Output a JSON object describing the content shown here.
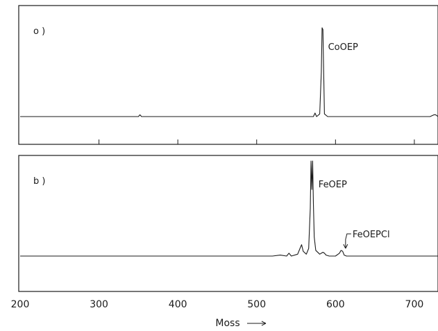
{
  "chart_data": {
    "type": "line",
    "xlabel": "Moss",
    "xlim": [
      200,
      730
    ],
    "x_ticks": [
      200,
      300,
      400,
      500,
      600,
      700
    ],
    "panels": [
      {
        "label": "o )",
        "annotations": [
          {
            "text": "CoOEP",
            "x": 587
          }
        ],
        "series": [
          {
            "x": [
              200,
              350,
              352,
              354,
              560,
              572,
              574,
              576,
              580,
              582,
              583,
              584,
              585,
              586,
              590,
              600,
              720,
              725,
              727,
              730
            ],
            "y": [
              0.0,
              0.0,
              0.02,
              0.0,
              0.0,
              0.0,
              0.04,
              0.0,
              0.03,
              0.5,
              1.0,
              0.98,
              0.5,
              0.03,
              0.0,
              0.0,
              0.0,
              0.02,
              0.02,
              0.0
            ]
          }
        ]
      },
      {
        "label": "b )",
        "annotations": [
          {
            "text": "FeOEP",
            "x": 574
          },
          {
            "text": "FeOEPCl",
            "x": 611
          }
        ],
        "series": [
          {
            "x": [
              200,
              520,
              530,
              538,
              541,
              544,
              552,
              555,
              557,
              559,
              563,
              566,
              568,
              569,
              570,
              571,
              572,
              573,
              575,
              580,
              584,
              586,
              588,
              592,
              600,
              605,
              607,
              609,
              611,
              614,
              730
            ],
            "y": [
              0.0,
              0.0,
              0.01,
              0.0,
              0.03,
              0.0,
              0.02,
              0.08,
              0.12,
              0.05,
              0.02,
              0.08,
              0.5,
              1.0,
              0.7,
              1.0,
              0.55,
              0.2,
              0.06,
              0.02,
              0.04,
              0.03,
              0.01,
              0.0,
              0.0,
              0.03,
              0.06,
              0.05,
              0.01,
              0.0,
              0.0
            ]
          }
        ]
      }
    ]
  }
}
